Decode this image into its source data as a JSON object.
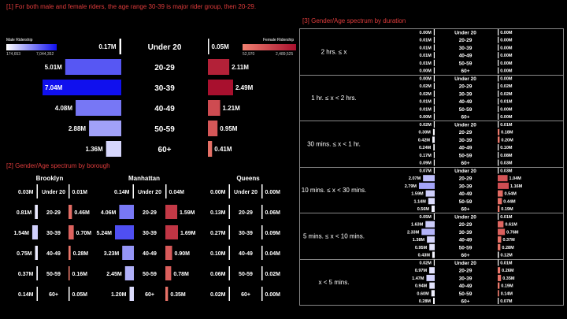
{
  "titles": {
    "section1": "[1] For both male and female riders, the age range 30-39 is major rider group, then 20-29.",
    "section2": "[2] Gender/Age spectrum by borough",
    "section3": "[3] Gender/Age spectrum by duration"
  },
  "legends": {
    "male": {
      "label": "Male Ridership",
      "min": "174,653",
      "max": "7,044,352",
      "color_light": "#ffffff",
      "color_dark": "#1010ee"
    },
    "female": {
      "label": "Female Ridership",
      "min": "52,970",
      "max": "2,489,525",
      "color_light": "#f08070",
      "color_dark": "#a8102e"
    }
  },
  "chart_data": [
    {
      "type": "bar",
      "name": "overall",
      "categories": [
        "Under 20",
        "20-29",
        "30-39",
        "40-49",
        "50-59",
        "60+"
      ],
      "male": [
        0.17,
        5.01,
        7.04,
        4.08,
        2.88,
        1.36
      ],
      "male_labels": [
        "0.17M",
        "5.01M",
        "7.04M",
        "4.08M",
        "2.88M",
        "1.36M"
      ],
      "female": [
        0.05,
        2.11,
        2.49,
        1.21,
        0.95,
        0.41
      ],
      "female_labels": [
        "0.05M",
        "2.11M",
        "2.49M",
        "1.21M",
        "0.95M",
        "0.41M"
      ]
    },
    {
      "type": "bar",
      "name": "borough",
      "categories": [
        "Under 20",
        "20-29",
        "30-39",
        "40-49",
        "50-59",
        "60+"
      ],
      "boroughs": [
        {
          "name": "Brooklyn",
          "male": [
            0.03,
            0.81,
            1.54,
            0.75,
            0.37,
            0.14
          ],
          "male_labels": [
            "0.03M",
            "0.81M",
            "1.54M",
            "0.75M",
            "0.37M",
            "0.14M"
          ],
          "female": [
            0.01,
            0.46,
            0.7,
            0.28,
            0.16,
            0.05
          ],
          "female_labels": [
            "0.01M",
            "0.46M",
            "0.70M",
            "0.28M",
            "0.16M",
            "0.05M"
          ]
        },
        {
          "name": "Manhattan",
          "male": [
            0.14,
            4.06,
            5.24,
            3.23,
            2.45,
            1.2
          ],
          "male_labels": [
            "0.14M",
            "4.06M",
            "5.24M",
            "3.23M",
            "2.45M",
            "1.20M"
          ],
          "female": [
            0.04,
            1.59,
            1.69,
            0.9,
            0.78,
            0.35
          ],
          "female_labels": [
            "0.04M",
            "1.59M",
            "1.69M",
            "0.90M",
            "0.78M",
            "0.35M"
          ]
        },
        {
          "name": "Queens",
          "male": [
            0.0,
            0.13,
            0.27,
            0.1,
            0.06,
            0.02
          ],
          "male_labels": [
            "0.00M",
            "0.13M",
            "0.27M",
            "0.10M",
            "0.06M",
            "0.02M"
          ],
          "female": [
            0.0,
            0.06,
            0.09,
            0.04,
            0.02,
            0.0
          ],
          "female_labels": [
            "0.00M",
            "0.06M",
            "0.09M",
            "0.04M",
            "0.02M",
            "0.00M"
          ]
        }
      ]
    },
    {
      "type": "bar",
      "name": "duration",
      "categories": [
        "Under 20",
        "20-29",
        "30-39",
        "40-49",
        "50-59",
        "60+"
      ],
      "durations": [
        {
          "name": "2 hrs. ≤ x",
          "male": [
            0.0,
            0.01,
            0.01,
            0.01,
            0.01,
            0.0
          ],
          "male_labels": [
            "0.00M",
            "0.01M",
            "0.01M",
            "0.01M",
            "0.01M",
            "0.00M"
          ],
          "female": [
            0.0,
            0.0,
            0.0,
            0.0,
            0.0,
            0.0
          ],
          "female_labels": [
            "0.00M",
            "0.00M",
            "0.00M",
            "0.00M",
            "0.00M",
            "0.00M"
          ]
        },
        {
          "name": "1 hr. ≤ x < 2 hrs.",
          "male": [
            0.0,
            0.02,
            0.02,
            0.01,
            0.01,
            0.0
          ],
          "male_labels": [
            "0.00M",
            "0.02M",
            "0.02M",
            "0.01M",
            "0.01M",
            "0.00M"
          ],
          "female": [
            0.0,
            0.02,
            0.02,
            0.01,
            0.0,
            0.0
          ],
          "female_labels": [
            "0.00M",
            "0.02M",
            "0.02M",
            "0.01M",
            "0.00M",
            "0.00M"
          ]
        },
        {
          "name": "30 mins. ≤ x < 1 hr.",
          "male": [
            0.02,
            0.3,
            0.42,
            0.24,
            0.17,
            0.09
          ],
          "male_labels": [
            "0.02M",
            "0.30M",
            "0.42M",
            "0.24M",
            "0.17M",
            "0.09M"
          ],
          "female": [
            0.01,
            0.18,
            0.2,
            0.1,
            0.08,
            0.03
          ],
          "female_labels": [
            "0.01M",
            "0.18M",
            "0.20M",
            "0.10M",
            "0.08M",
            "0.03M"
          ]
        },
        {
          "name": "10 mins. ≤ x < 30 mins.",
          "male": [
            0.07,
            2.07,
            2.79,
            1.59,
            1.14,
            0.56
          ],
          "male_labels": [
            "0.07M",
            "2.07M",
            "2.79M",
            "1.59M",
            "1.14M",
            "0.56M"
          ],
          "female": [
            0.03,
            1.04,
            1.16,
            0.54,
            0.44,
            0.19
          ],
          "female_labels": [
            "0.03M",
            "1.04M",
            "1.16M",
            "0.54M",
            "0.44M",
            "0.19M"
          ]
        },
        {
          "name": "5 mins. ≤ x < 10 mins.",
          "male": [
            0.05,
            1.63,
            2.33,
            1.38,
            0.95,
            0.43
          ],
          "male_labels": [
            "0.05M",
            "1.63M",
            "2.33M",
            "1.38M",
            "0.95M",
            "0.43M"
          ],
          "female": [
            0.01,
            0.61,
            0.76,
            0.37,
            0.28,
            0.12
          ],
          "female_labels": [
            "0.01M",
            "0.61M",
            "0.76M",
            "0.37M",
            "0.28M",
            "0.12M"
          ]
        },
        {
          "name": "x < 5 mins.",
          "male": [
            0.02,
            0.97,
            1.47,
            0.94,
            0.6,
            0.28
          ],
          "male_labels": [
            "0.02M",
            "0.97M",
            "1.47M",
            "0.94M",
            "0.60M",
            "0.28M"
          ],
          "female": [
            0.01,
            0.26,
            0.35,
            0.19,
            0.14,
            0.07
          ],
          "female_labels": [
            "0.01M",
            "0.26M",
            "0.35M",
            "0.19M",
            "0.14M",
            "0.07M"
          ]
        }
      ]
    }
  ]
}
